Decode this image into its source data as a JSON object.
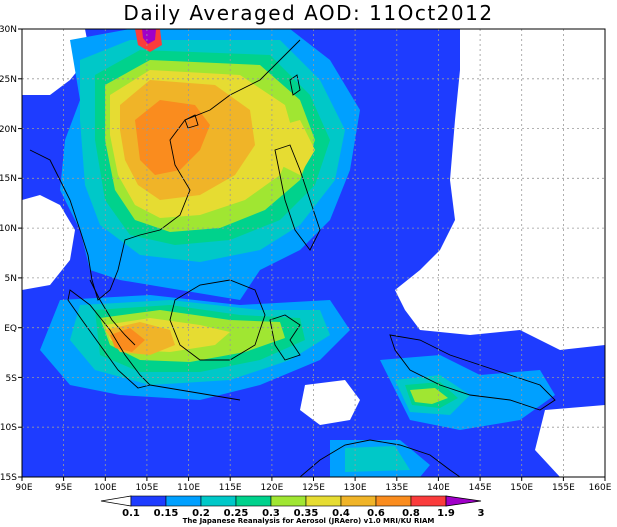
{
  "title": "Daily Averaged AOD: 11Oct2012",
  "credit": "The Japanese Reanalysis for Aerosol (JRAero) v1.0 MRI/KU RIAM",
  "map": {
    "lon_range": [
      90,
      160
    ],
    "lat_range": [
      -15,
      30
    ],
    "grid": true,
    "lat_ticks": [
      "30N",
      "25N",
      "20N",
      "15N",
      "10N",
      "5N",
      "EQ",
      "5S",
      "10S",
      "15S"
    ],
    "lon_ticks": [
      "90E",
      "95E",
      "100E",
      "105E",
      "110E",
      "115E",
      "120E",
      "125E",
      "130E",
      "135E",
      "140E",
      "145E",
      "150E",
      "155E",
      "160E"
    ]
  },
  "colorbar": {
    "levels": [
      "0.1",
      "0.15",
      "0.2",
      "0.25",
      "0.3",
      "0.35",
      "0.4",
      "0.6",
      "0.8",
      "1.9",
      "3"
    ],
    "colors": {
      "lt_0_1": "#ffffff",
      "c_0_1": "#1e3cff",
      "c_0_15": "#00a0ff",
      "c_0_2": "#00c8c8",
      "c_0_25": "#00d28c",
      "c_0_3": "#a0e632",
      "c_0_35": "#e6dc32",
      "c_0_4": "#f0b428",
      "c_0_6": "#fa8c1e",
      "c_0_8": "#fa3c3c",
      "c_1_9": "#a000c8"
    }
  }
}
